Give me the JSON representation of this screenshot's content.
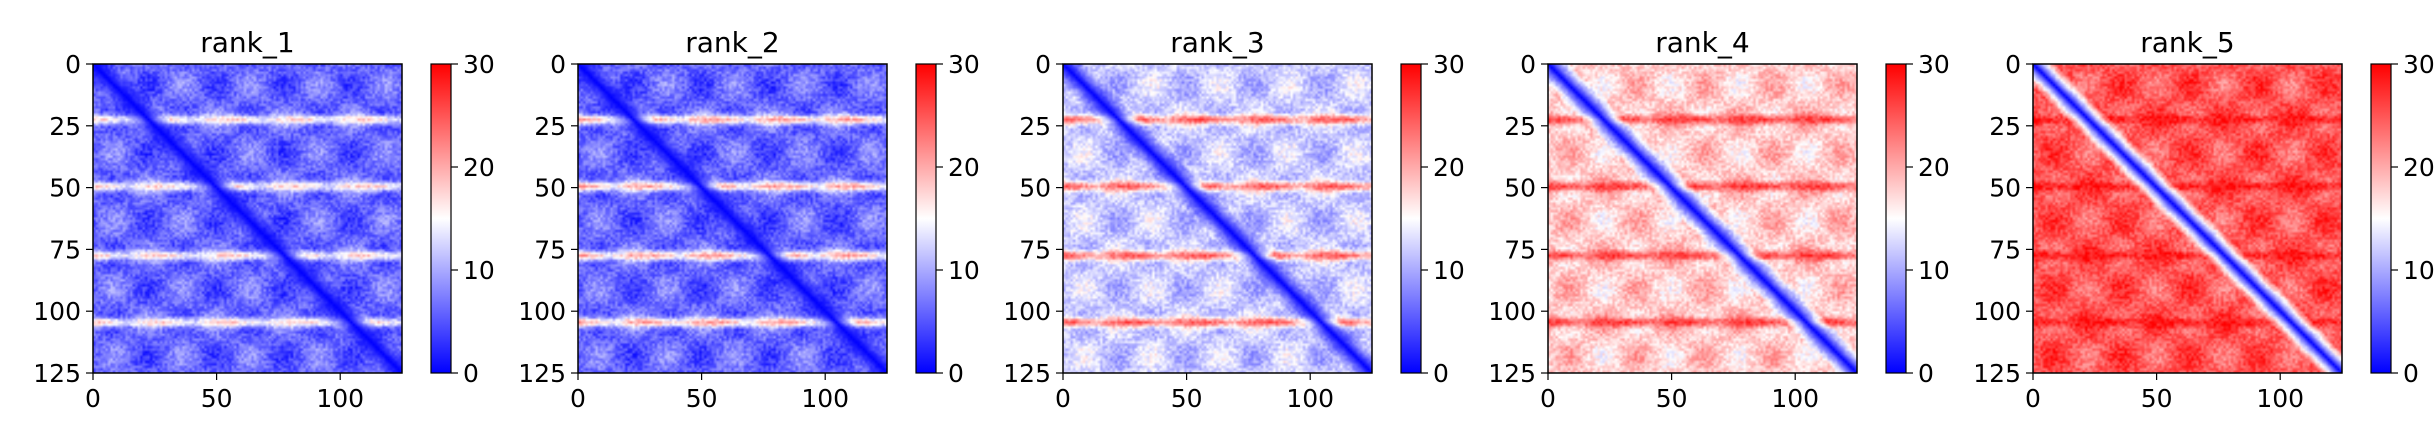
{
  "chart_data": [
    {
      "type": "heatmap",
      "title": "rank_1",
      "matrix_size": 125,
      "xlim": [
        0,
        125
      ],
      "ylim": [
        125,
        0
      ],
      "xticks": [
        0,
        50,
        100
      ],
      "yticks": [
        0,
        25,
        50,
        75,
        100,
        125
      ],
      "colormap": "bwr",
      "colorbar_range": [
        0,
        30
      ],
      "colorbar_ticks": [
        0,
        10,
        20,
        30
      ],
      "diagonal_value": 0,
      "background_value": 6,
      "band_value": 18,
      "band_positions": [
        22,
        49,
        77,
        104
      ],
      "periodic_block_period": 27.5
    },
    {
      "type": "heatmap",
      "title": "rank_2",
      "matrix_size": 125,
      "xlim": [
        0,
        125
      ],
      "ylim": [
        125,
        0
      ],
      "xticks": [
        0,
        50,
        100
      ],
      "yticks": [
        0,
        25,
        50,
        75,
        100,
        125
      ],
      "colormap": "bwr",
      "colorbar_range": [
        0,
        30
      ],
      "colorbar_ticks": [
        0,
        10,
        20,
        30
      ],
      "diagonal_value": 0,
      "background_value": 6,
      "band_value": 21,
      "band_positions": [
        22,
        49,
        77,
        104
      ],
      "periodic_block_period": 27.5
    },
    {
      "type": "heatmap",
      "title": "rank_3",
      "matrix_size": 125,
      "xlim": [
        0,
        125
      ],
      "ylim": [
        125,
        0
      ],
      "xticks": [
        0,
        50,
        100
      ],
      "yticks": [
        0,
        25,
        50,
        75,
        100,
        125
      ],
      "colormap": "bwr",
      "colorbar_range": [
        0,
        30
      ],
      "colorbar_ticks": [
        0,
        10,
        20,
        30
      ],
      "diagonal_value": 0,
      "background_value": 12,
      "band_value": 25,
      "band_positions": [
        22,
        49,
        77,
        104
      ],
      "periodic_block_period": 27.5
    },
    {
      "type": "heatmap",
      "title": "rank_4",
      "matrix_size": 125,
      "xlim": [
        0,
        125
      ],
      "ylim": [
        125,
        0
      ],
      "xticks": [
        0,
        50,
        100
      ],
      "yticks": [
        0,
        25,
        50,
        75,
        100,
        125
      ],
      "colormap": "bwr",
      "colorbar_range": [
        0,
        30
      ],
      "colorbar_ticks": [
        0,
        10,
        20,
        30
      ],
      "diagonal_value": 0,
      "background_value": 18,
      "band_value": 27,
      "band_positions": [
        22,
        49,
        77,
        104
      ],
      "periodic_block_period": 27.5
    },
    {
      "type": "heatmap",
      "title": "rank_5",
      "matrix_size": 125,
      "xlim": [
        0,
        125
      ],
      "ylim": [
        125,
        0
      ],
      "xticks": [
        0,
        50,
        100
      ],
      "yticks": [
        0,
        25,
        50,
        75,
        100,
        125
      ],
      "colormap": "bwr",
      "colorbar_range": [
        0,
        30
      ],
      "colorbar_ticks": [
        0,
        10,
        20,
        30
      ],
      "diagonal_value": 0,
      "background_value": 25,
      "band_value": 29,
      "band_positions": [
        22,
        49,
        77,
        104
      ],
      "periodic_block_period": 27.5
    }
  ],
  "colors": {
    "low": "#0000ff",
    "mid": "#ffffff",
    "high": "#ff0000",
    "axes": "#000000"
  }
}
